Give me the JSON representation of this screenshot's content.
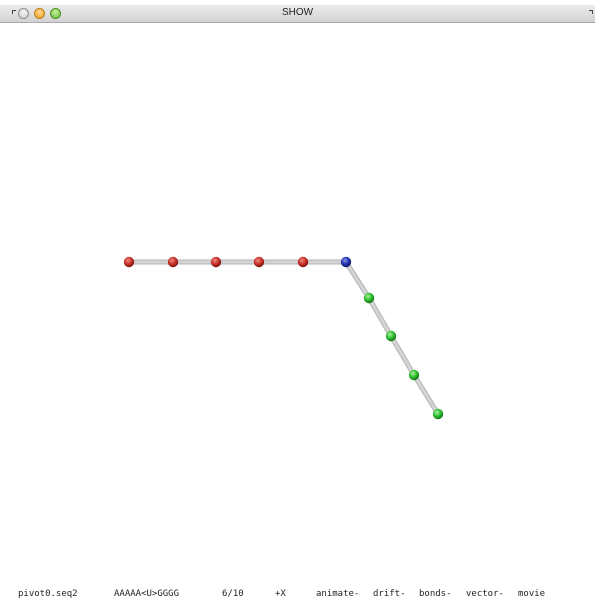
{
  "window": {
    "title": "SHOW"
  },
  "colors": {
    "red_bead": "#c8322a",
    "blue_bead": "#2233b0",
    "green_bead": "#2fbf2f",
    "bond": "#d4d4d4"
  },
  "molecule": {
    "beads": [
      {
        "type": "A",
        "color": "red"
      },
      {
        "type": "A",
        "color": "red"
      },
      {
        "type": "A",
        "color": "red"
      },
      {
        "type": "A",
        "color": "red"
      },
      {
        "type": "A",
        "color": "red"
      },
      {
        "type": "U",
        "color": "blue"
      },
      {
        "type": "G",
        "color": "green"
      },
      {
        "type": "G",
        "color": "green"
      },
      {
        "type": "G",
        "color": "green"
      },
      {
        "type": "G",
        "color": "green"
      }
    ]
  },
  "status": {
    "file": "pivot0.seq2",
    "sequence": "AAAAA<U>GGGG",
    "frame": "6/10",
    "axis": "+X",
    "animate": "animate-",
    "drift": "drift-",
    "bonds": "bonds-",
    "vector": "vector-",
    "movie": "movie"
  }
}
